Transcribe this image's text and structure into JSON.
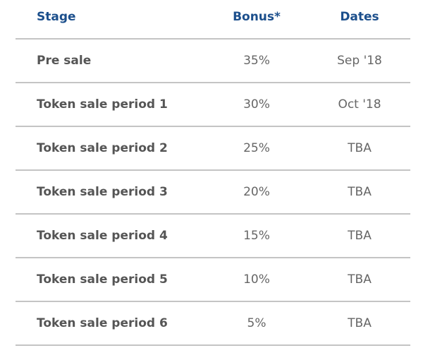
{
  "table": {
    "header": [
      "Stage",
      "Bonus*",
      "Dates"
    ],
    "rows": [
      [
        "Pre sale",
        "35%",
        "Sep '18"
      ],
      [
        "Token sale period 1",
        "30%",
        "Oct '18"
      ],
      [
        "Token sale period 2",
        "25%",
        "TBA"
      ],
      [
        "Token sale period 3",
        "20%",
        "TBA"
      ],
      [
        "Token sale period 4",
        "15%",
        "TBA"
      ],
      [
        "Token sale period 5",
        "10%",
        "TBA"
      ],
      [
        "Token sale period 6",
        "5%",
        "TBA"
      ]
    ]
  }
}
